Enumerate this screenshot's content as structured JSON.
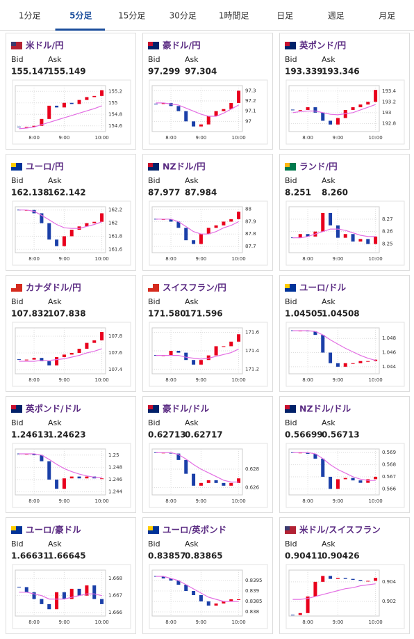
{
  "tabs": [
    "1分足",
    "5分足",
    "15分足",
    "30分足",
    "1時間足",
    "日足",
    "週足",
    "月足"
  ],
  "active_tab": 1,
  "labels": {
    "bid": "Bid",
    "ask": "Ask"
  },
  "chart_style": {
    "type": "candlestick",
    "up_color": "#e8001c",
    "down_color": "#1a3fa8",
    "ma_color": "#e36ee3",
    "grid": true
  },
  "time_axis": {
    "xlim": [
      -0.5,
      11.5
    ],
    "xticks": [
      {
        "value": 2,
        "label": "8:00"
      },
      {
        "value": 6,
        "label": "9:00"
      },
      {
        "value": 11,
        "label": "10:00"
      }
    ]
  },
  "panels": [
    {
      "title": "米ドル/円",
      "bid": "155.147",
      "ask": "155.149",
      "chart": {
        "ylim": [
          154.5,
          155.3
        ],
        "yticks": [
          154.6,
          154.8,
          155,
          155.2
        ],
        "values": [
          154.58,
          154.58,
          154.6,
          154.72,
          154.95,
          154.92,
          155.0,
          154.98,
          155.05,
          155.1,
          155.12,
          155.22
        ],
        "ma": [
          154.55,
          154.56,
          154.58,
          154.62,
          154.66,
          154.7,
          154.74,
          154.78,
          154.82,
          154.86,
          154.9,
          154.95
        ]
      }
    },
    {
      "title": "豪ドル/円",
      "bid": "97.299",
      "ask": "97.304",
      "chart": {
        "ylim": [
          96.9,
          97.35
        ],
        "yticks": [
          97,
          97.1,
          97.2,
          97.3
        ],
        "values": [
          97.17,
          97.18,
          97.15,
          97.1,
          97.0,
          96.95,
          96.97,
          97.05,
          97.1,
          97.12,
          97.18,
          97.3
        ],
        "ma": [
          97.18,
          97.18,
          97.17,
          97.16,
          97.13,
          97.1,
          97.07,
          97.05,
          97.05,
          97.08,
          97.12,
          97.16
        ]
      }
    },
    {
      "title": "英ポンド/円",
      "bid": "193.339",
      "ask": "193.346",
      "chart": {
        "ylim": [
          192.65,
          193.5
        ],
        "yticks": [
          192.8,
          193,
          193.2,
          193.4
        ],
        "values": [
          193.05,
          193.05,
          193.1,
          193.0,
          192.85,
          192.78,
          192.9,
          193.05,
          193.1,
          193.15,
          193.2,
          193.42
        ],
        "ma": [
          193.0,
          193.02,
          193.03,
          193.03,
          193.0,
          192.97,
          192.96,
          192.98,
          193.0,
          193.05,
          193.1,
          193.15
        ]
      }
    },
    {
      "title": "ユーロ/円",
      "bid": "162.138",
      "ask": "162.142",
      "chart": {
        "ylim": [
          161.55,
          162.25
        ],
        "yticks": [
          161.6,
          161.8,
          162,
          162.2
        ],
        "values": [
          162.2,
          162.2,
          162.15,
          162.0,
          161.75,
          161.65,
          161.8,
          161.9,
          161.95,
          162.0,
          162.02,
          162.15
        ],
        "ma": [
          162.2,
          162.2,
          162.18,
          162.12,
          162.05,
          161.98,
          161.93,
          161.92,
          161.92,
          161.95,
          161.98,
          162.02
        ]
      }
    },
    {
      "title": "NZドル/円",
      "bid": "87.977",
      "ask": "87.984",
      "chart": {
        "ylim": [
          87.65,
          88.02
        ],
        "yticks": [
          87.7,
          87.8,
          87.9,
          88
        ],
        "values": [
          87.92,
          87.92,
          87.9,
          87.85,
          87.75,
          87.72,
          87.8,
          87.85,
          87.87,
          87.9,
          87.92,
          87.98
        ],
        "ma": [
          87.92,
          87.92,
          87.92,
          87.9,
          87.86,
          87.82,
          87.8,
          87.8,
          87.82,
          87.85,
          87.87,
          87.9
        ]
      }
    },
    {
      "title": "ランド/円",
      "bid": "8.251",
      "ask": "8.260",
      "chart": {
        "ylim": [
          8.243,
          8.28
        ],
        "yticks": [
          8.25,
          8.26,
          8.27
        ],
        "values": [
          8.255,
          8.258,
          8.256,
          8.26,
          8.275,
          8.265,
          8.255,
          8.258,
          8.252,
          8.254,
          8.25,
          8.256
        ],
        "ma": [
          8.255,
          8.255,
          8.256,
          8.258,
          8.26,
          8.262,
          8.262,
          8.261,
          8.259,
          8.257,
          8.256,
          8.256
        ]
      }
    },
    {
      "title": "カナダドル/円",
      "bid": "107.832",
      "ask": "107.838",
      "chart": {
        "ylim": [
          107.35,
          107.9
        ],
        "yticks": [
          107.4,
          107.6,
          107.8
        ],
        "values": [
          107.52,
          107.52,
          107.54,
          107.5,
          107.45,
          107.55,
          107.58,
          107.6,
          107.65,
          107.72,
          107.75,
          107.85
        ],
        "ma": [
          107.5,
          107.5,
          107.5,
          107.51,
          107.51,
          107.52,
          107.53,
          107.55,
          107.57,
          107.6,
          107.62,
          107.65
        ]
      }
    },
    {
      "title": "スイスフラン/円",
      "bid": "171.580",
      "ask": "171.596",
      "chart": {
        "ylim": [
          171.15,
          171.65
        ],
        "yticks": [
          171.2,
          171.4,
          171.6
        ],
        "values": [
          171.35,
          171.35,
          171.4,
          171.38,
          171.3,
          171.25,
          171.3,
          171.35,
          171.45,
          171.45,
          171.5,
          171.58
        ],
        "ma": [
          171.35,
          171.35,
          171.35,
          171.35,
          171.33,
          171.32,
          171.31,
          171.32,
          171.34,
          171.36,
          171.38,
          171.42
        ]
      }
    },
    {
      "title": "ユーロ/ドル",
      "bid": "1.04505",
      "ask": "1.04508",
      "chart": {
        "ylim": [
          1.043,
          1.0495
        ],
        "yticks": [
          1.044,
          1.046,
          1.048
        ],
        "values": [
          1.0491,
          1.0491,
          1.049,
          1.0485,
          1.046,
          1.0445,
          1.044,
          1.0445,
          1.0445,
          1.0448,
          1.0448,
          1.045
        ],
        "ma": [
          1.0491,
          1.0491,
          1.0491,
          1.049,
          1.0485,
          1.0478,
          1.0472,
          1.0466,
          1.0461,
          1.0456,
          1.0452,
          1.0449
        ]
      }
    },
    {
      "title": "英ポンド/ドル",
      "bid": "1.24613",
      "ask": "1.24623",
      "chart": {
        "ylim": [
          1.2435,
          1.251
        ],
        "yticks": [
          1.244,
          1.246,
          1.248,
          1.25
        ],
        "values": [
          1.2502,
          1.2502,
          1.25,
          1.249,
          1.246,
          1.2445,
          1.2462,
          1.2465,
          1.2462,
          1.2465,
          1.2462,
          1.2462
        ],
        "ma": [
          1.2502,
          1.2502,
          1.2502,
          1.25,
          1.2493,
          1.2485,
          1.2478,
          1.2473,
          1.2469,
          1.2466,
          1.2464,
          1.2463
        ]
      }
    },
    {
      "title": "豪ドル/ドル",
      "bid": "0.62713",
      "ask": "0.62717",
      "chart": {
        "ylim": [
          0.6252,
          0.6302
        ],
        "yticks": [
          0.626,
          0.628
        ],
        "values": [
          0.6298,
          0.6298,
          0.6297,
          0.629,
          0.6275,
          0.6262,
          0.6265,
          0.6268,
          0.6265,
          0.6262,
          0.6265,
          0.627
        ],
        "ma": [
          0.6298,
          0.6298,
          0.6298,
          0.6296,
          0.6291,
          0.6285,
          0.628,
          0.6276,
          0.6272,
          0.6268,
          0.6266,
          0.6266
        ]
      }
    },
    {
      "title": "NZドル/ドル",
      "bid": "0.56699",
      "ask": "0.56713",
      "chart": {
        "ylim": [
          0.5655,
          0.5693
        ],
        "yticks": [
          0.566,
          0.567,
          0.568,
          0.569
        ],
        "values": [
          0.569,
          0.569,
          0.5689,
          0.5685,
          0.567,
          0.566,
          0.5668,
          0.5669,
          0.5667,
          0.5665,
          0.5668,
          0.567
        ],
        "ma": [
          0.569,
          0.569,
          0.569,
          0.5689,
          0.5685,
          0.568,
          0.5676,
          0.5673,
          0.567,
          0.5668,
          0.5667,
          0.5667
        ]
      }
    },
    {
      "title": "ユーロ/豪ドル",
      "bid": "1.66631",
      "ask": "1.66645",
      "chart": {
        "ylim": [
          1.6658,
          1.6685
        ],
        "yticks": [
          1.666,
          1.667,
          1.668
        ],
        "values": [
          1.6675,
          1.6672,
          1.6668,
          1.6665,
          1.6662,
          1.6672,
          1.6668,
          1.6674,
          1.667,
          1.6676,
          1.6668,
          1.6665
        ],
        "ma": [
          1.6672,
          1.6672,
          1.6671,
          1.667,
          1.6668,
          1.6668,
          1.6668,
          1.6669,
          1.667,
          1.6671,
          1.6671,
          1.667
        ]
      }
    },
    {
      "title": "ユーロ/英ポンド",
      "bid": "0.83857",
      "ask": "0.83865",
      "chart": {
        "ylim": [
          0.8378,
          0.84
        ],
        "yticks": [
          0.838,
          0.8385,
          0.839,
          0.8395
        ],
        "values": [
          0.8397,
          0.8396,
          0.8395,
          0.8393,
          0.839,
          0.8388,
          0.8385,
          0.8383,
          0.8384,
          0.8385,
          0.8386,
          0.8386
        ],
        "ma": [
          0.8397,
          0.8397,
          0.8396,
          0.8395,
          0.8393,
          0.8391,
          0.8389,
          0.8387,
          0.8386,
          0.8385,
          0.8385,
          0.8385
        ]
      }
    },
    {
      "title": "米ドル/スイスフラン",
      "bid": "0.90411",
      "ask": "0.90426",
      "chart": {
        "ylim": [
          0.9005,
          0.9052
        ],
        "yticks": [
          0.902,
          0.904
        ],
        "values": [
          0.9006,
          0.9008,
          0.9025,
          0.904,
          0.9046,
          0.9043,
          0.9044,
          0.9043,
          0.9042,
          0.9041,
          0.9041,
          0.9044
        ],
        "ma": [
          0.9022,
          0.9022,
          0.9023,
          0.9025,
          0.9027,
          0.9029,
          0.9031,
          0.9033,
          0.9034,
          0.9036,
          0.9037,
          0.9038
        ]
      }
    }
  ]
}
